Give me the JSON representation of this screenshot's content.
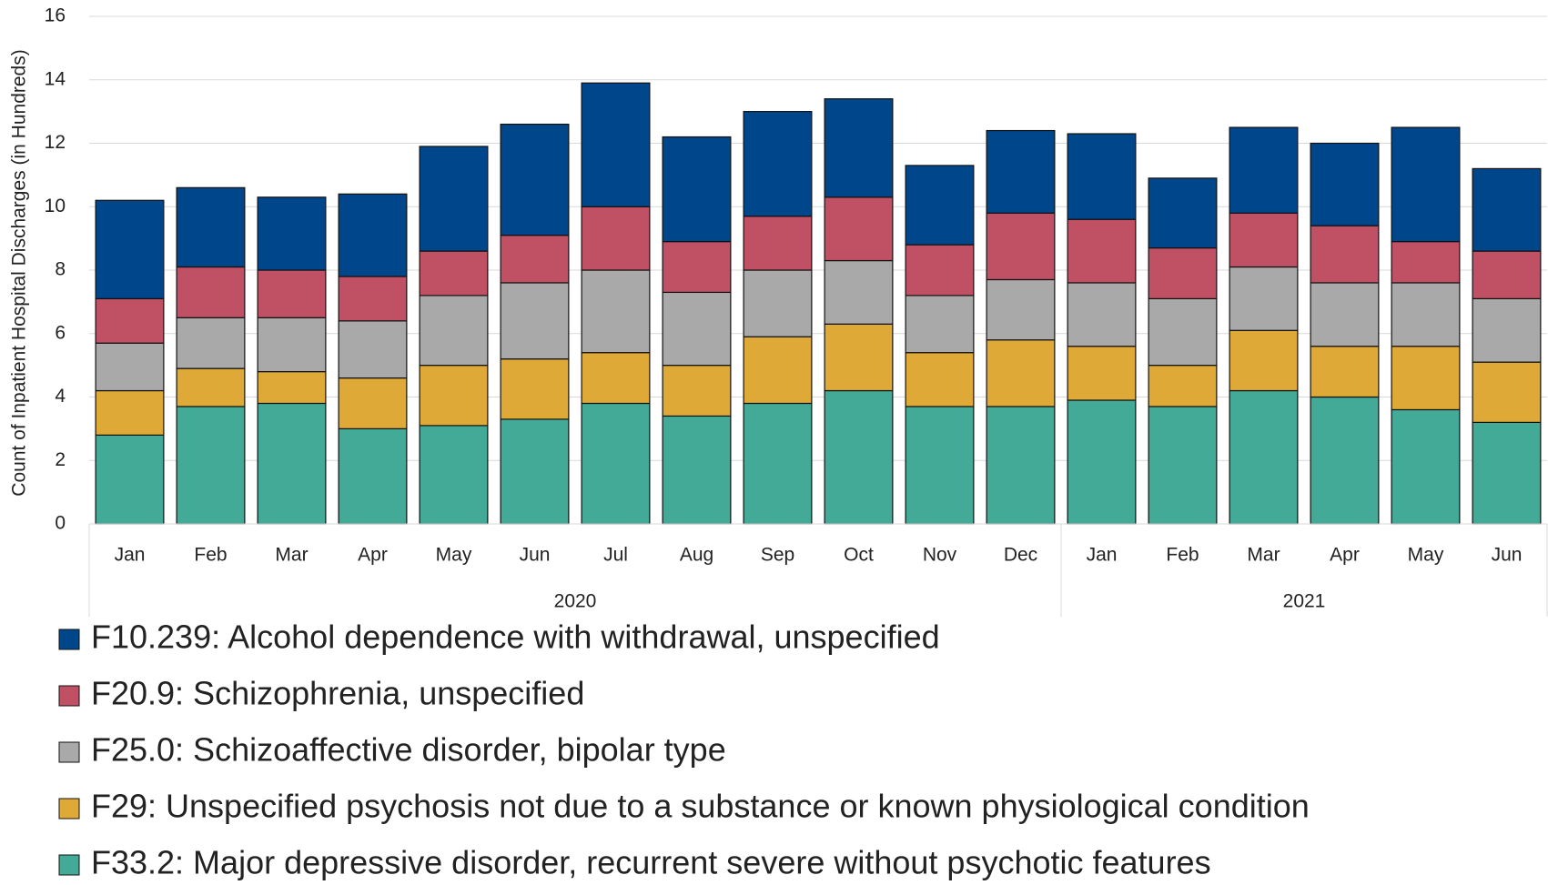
{
  "chart_data": {
    "type": "stacked_bar",
    "y_label": "Count of Inpatient Hospital Discharges (in Hundreds)",
    "groups": [
      {
        "name": "2020",
        "categories": [
          "Jan",
          "Feb",
          "Mar",
          "Apr",
          "May",
          "Jun",
          "Jul",
          "Aug",
          "Sep",
          "Oct",
          "Nov",
          "Dec"
        ]
      },
      {
        "name": "2021",
        "categories": [
          "Jan",
          "Feb",
          "Mar",
          "Apr",
          "May",
          "Jun"
        ]
      }
    ],
    "series": [
      {
        "name": "F10.239: Alcohol dependence with withdrawal, unspecified",
        "color": "#00468b",
        "values": [
          3.1,
          2.5,
          2.3,
          2.6,
          3.3,
          3.5,
          3.9,
          3.3,
          3.3,
          3.1,
          2.5,
          2.6,
          2.7,
          2.2,
          2.7,
          2.6,
          3.6,
          2.6
        ]
      },
      {
        "name": "F20.9: Schizophrenia, unspecified",
        "color": "#c05064",
        "values": [
          1.4,
          1.6,
          1.5,
          1.4,
          1.4,
          1.5,
          2.0,
          1.6,
          1.7,
          2.0,
          1.6,
          2.1,
          2.0,
          1.6,
          1.7,
          1.8,
          1.3,
          1.5
        ]
      },
      {
        "name": "F25.0: Schizoaffective disorder, bipolar type",
        "color": "#a9a9a9",
        "values": [
          1.5,
          1.6,
          1.7,
          1.8,
          2.2,
          2.4,
          2.6,
          2.3,
          2.1,
          2.0,
          1.8,
          1.9,
          2.0,
          2.1,
          2.0,
          2.0,
          2.0,
          2.0
        ]
      },
      {
        "name": "F29: Unspecified psychosis not due to a substance or known physiological condition",
        "color": "#dea936",
        "values": [
          1.4,
          1.2,
          1.0,
          1.6,
          1.9,
          1.9,
          1.6,
          1.6,
          2.1,
          2.1,
          1.7,
          2.1,
          1.7,
          1.3,
          1.9,
          1.6,
          2.0,
          1.9
        ]
      },
      {
        "name": "F33.2: Major depressive disorder, recurrent severe without psychotic features",
        "color": "#43aa98",
        "values": [
          2.8,
          3.7,
          3.8,
          3.0,
          3.1,
          3.3,
          3.8,
          3.4,
          3.8,
          4.2,
          3.7,
          3.7,
          3.9,
          3.7,
          4.2,
          4.0,
          3.6,
          3.2
        ]
      }
    ],
    "ylim": [
      0,
      16
    ],
    "yticks": [
      0,
      2,
      4,
      6,
      8,
      10,
      12,
      14,
      16
    ],
    "grid": true
  }
}
